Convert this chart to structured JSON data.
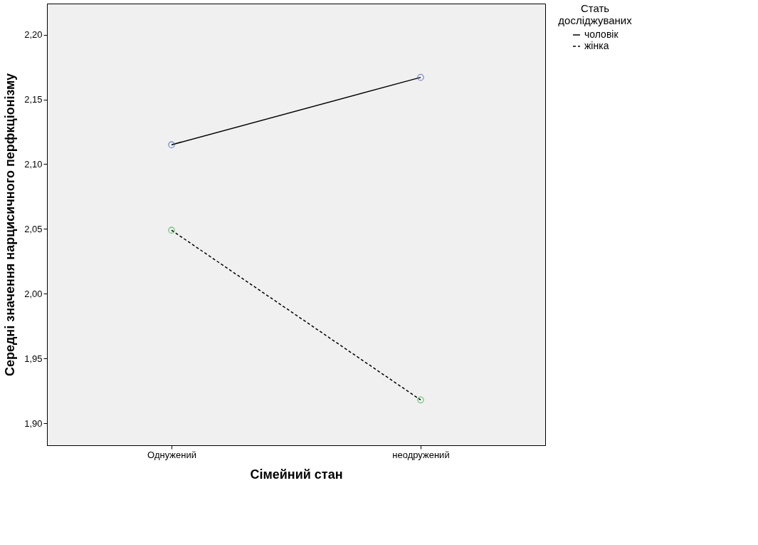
{
  "chart_data": {
    "type": "line",
    "xlabel": "Сімейний стан",
    "ylabel": "Середні значення нарцисичного перфкціонізму",
    "legend_title": "Стать досліджуваних",
    "legend": "top right",
    "grid": false,
    "marker": "circle",
    "categories": [
      "Однужений",
      "неодружений"
    ],
    "ylim": [
      1.883,
      2.224
    ],
    "yticks": [
      {
        "value": 1.9,
        "label": "1,90"
      },
      {
        "value": 1.95,
        "label": "1,95"
      },
      {
        "value": 2.0,
        "label": "2,00"
      },
      {
        "value": 2.05,
        "label": "2,05"
      },
      {
        "value": 2.1,
        "label": "2,10"
      },
      {
        "value": 2.15,
        "label": "2,15"
      },
      {
        "value": 2.2,
        "label": "2,20"
      }
    ],
    "series": [
      {
        "name": "чоловік",
        "color": "#000000",
        "colors": [
          "#4a5fc1",
          "#4a5fc1"
        ],
        "line_style": "solid",
        "values": [
          2.115,
          2.167
        ]
      },
      {
        "name": "жінка",
        "color": "#000000",
        "colors": [
          "#3cb44b",
          "#3cb44b"
        ],
        "line_style": "dashed",
        "values": [
          2.049,
          1.918
        ]
      }
    ]
  }
}
